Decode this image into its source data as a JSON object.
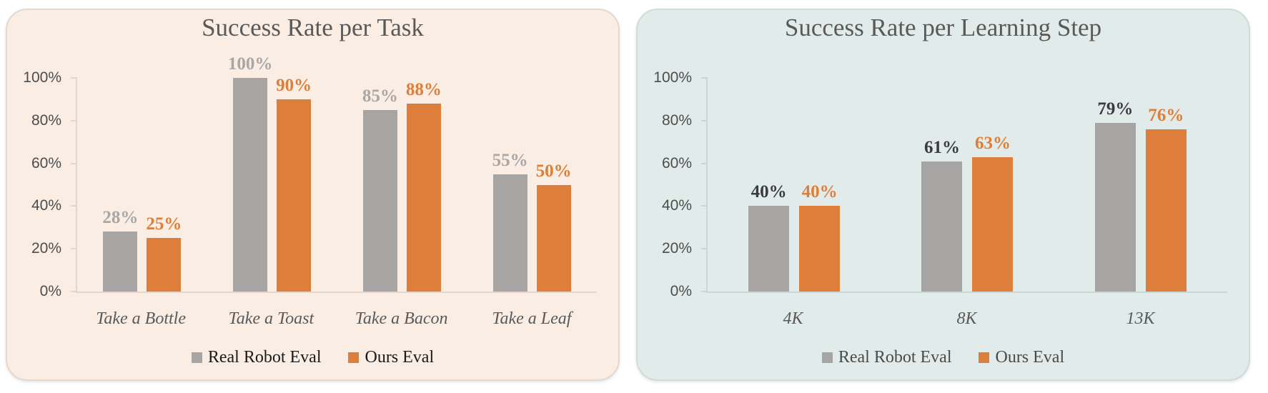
{
  "chart_data": [
    {
      "type": "bar",
      "title": "Success Rate per Task",
      "categories": [
        "Take a Bottle",
        "Take a Toast",
        "Take a Bacon",
        "Take a Leaf"
      ],
      "series": [
        {
          "name": "Real Robot Eval",
          "values": [
            28,
            100,
            85,
            55
          ],
          "color": "#A7A5A3",
          "label_color": "#A9A7A5"
        },
        {
          "name": "Ours Eval",
          "values": [
            25,
            90,
            88,
            50
          ],
          "color": "#DE7E3B",
          "label_color": "#DE7E3B"
        }
      ],
      "yticks": [
        "100%",
        "80%",
        "60%",
        "40%",
        "20%",
        "0%"
      ],
      "ylim": [
        0,
        100
      ],
      "value_suffix": "%",
      "grid": false,
      "legend_position": "bottom",
      "panel_background": "#F9EDE4",
      "title_color": "#595959",
      "axis_text_color": "#4D4D4D",
      "axis_line_color": "#E4D6CC",
      "category_text_color": "#595959",
      "legend_text_color": "#1A1A1A"
    },
    {
      "type": "bar",
      "title": "Success Rate per Learning Step",
      "categories": [
        "4K",
        "8K",
        "13K"
      ],
      "series": [
        {
          "name": "Real Robot Eval",
          "values": [
            40,
            61,
            79
          ],
          "color": "#A7A5A3",
          "label_color": "#3B3B3D"
        },
        {
          "name": "Ours Eval",
          "values": [
            40,
            63,
            76
          ],
          "color": "#DE7E3B",
          "label_color": "#DE7E3B"
        }
      ],
      "yticks": [
        "100%",
        "80%",
        "60%",
        "40%",
        "20%",
        "0%"
      ],
      "ylim": [
        0,
        100
      ],
      "value_suffix": "%",
      "grid": false,
      "legend_position": "bottom",
      "panel_background": "#E1EBE9",
      "title_color": "#595959",
      "axis_text_color": "#4D4D4D",
      "axis_line_color": "#C9D7D3",
      "category_text_color": "#595959",
      "legend_text_color": "#4A4A4A"
    }
  ]
}
